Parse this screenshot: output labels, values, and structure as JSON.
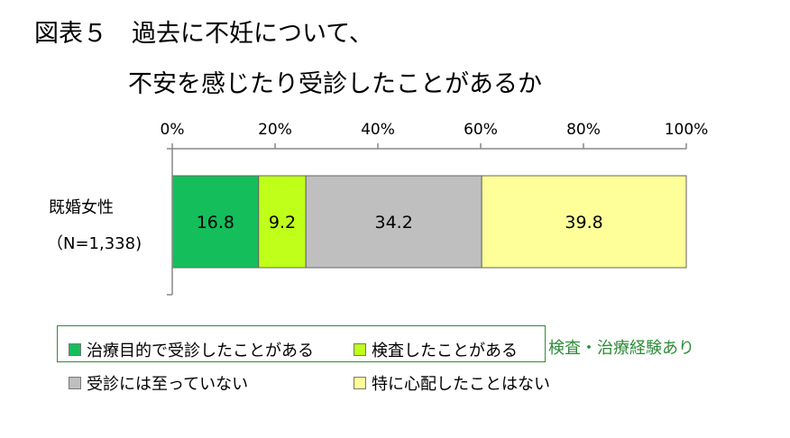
{
  "title_line1": "図表５　過去に不妊について、",
  "title_line2": "不安を感じたり受診したことがあるか",
  "chart_data": {
    "type": "bar",
    "orientation": "horizontal",
    "stacked": true,
    "x_ticks": [
      "0%",
      "20%",
      "40%",
      "60%",
      "80%",
      "100%"
    ],
    "xlim": [
      0,
      100
    ],
    "categories": [
      "既婚女性（N=1,338)"
    ],
    "category_line1": "既婚女性",
    "category_line2": "（N=1,338)",
    "series": [
      {
        "name": "治療目的で受診したことがある",
        "values": [
          16.8
        ],
        "color": "#14bf5b"
      },
      {
        "name": "検査したことがある",
        "values": [
          9.2
        ],
        "color": "#bfff1a"
      },
      {
        "name": "受診には至っていない",
        "values": [
          34.2
        ],
        "color": "#bfbfbf"
      },
      {
        "name": "特に心配したことはない",
        "values": [
          39.8
        ],
        "color": "#ffff99"
      }
    ],
    "data_labels": [
      "16.8",
      "9.2",
      "34.2",
      "39.8"
    ],
    "legend_position": "bottom",
    "grid": false
  },
  "legend": [
    {
      "label": "治療目的で受診したことがある",
      "color": "#14bf5b"
    },
    {
      "label": "検査したことがある",
      "color": "#bfff1a"
    },
    {
      "label": "受診には至っていない",
      "color": "#bfbfbf"
    },
    {
      "label": "特に心配したことはない",
      "color": "#ffff99"
    }
  ],
  "note": "検査・治療経験あり"
}
